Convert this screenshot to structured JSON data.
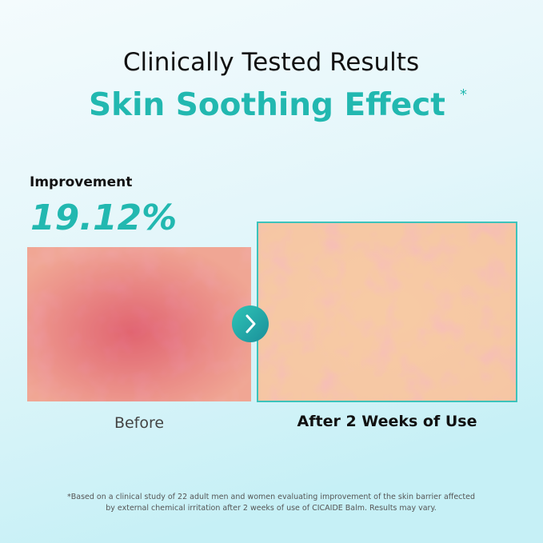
{
  "header": {
    "title": "Clinically Tested Results",
    "subtitle": "Skin Soothing Effect",
    "subtitle_mark": "*"
  },
  "improvement": {
    "label": "Improvement",
    "value": "19.12%"
  },
  "before": {
    "label": "Before"
  },
  "after": {
    "label": "After 2 Weeks of Use"
  },
  "footnote": {
    "lines": [
      "*Based on a clinical study of 22 adult men and women evaluating improvement of the skin barrier affected",
      "by external chemical irritation after 2 weeks of use of CICAIDE Balm. Results may vary."
    ]
  }
}
